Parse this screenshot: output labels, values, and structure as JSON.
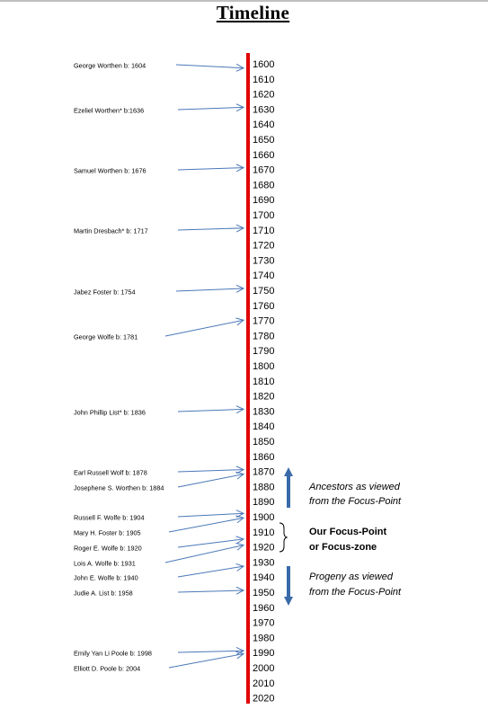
{
  "title": "Timeline",
  "years": [
    1600,
    1610,
    1620,
    1630,
    1640,
    1650,
    1660,
    1670,
    1680,
    1690,
    1700,
    1710,
    1720,
    1730,
    1740,
    1750,
    1760,
    1770,
    1780,
    1790,
    1800,
    1810,
    1820,
    1830,
    1840,
    1850,
    1860,
    1870,
    1880,
    1890,
    1900,
    1910,
    1920,
    1930,
    1940,
    1950,
    1960,
    1970,
    1980,
    1990,
    2000,
    2010,
    2020
  ],
  "people": [
    {
      "label": "George Worthen b: 1604",
      "year": 1604
    },
    {
      "label": "Ezeliel Worthen* b:1636",
      "year": 1630
    },
    {
      "label": "Samuel Worthen b: 1676",
      "year": 1670
    },
    {
      "label": "Martin Dresbach* b: 1717",
      "year": 1710
    },
    {
      "label": "Jabez Foster b: 1754",
      "year": 1750
    },
    {
      "label": "George Wolfe b: 1781",
      "year": 1771
    },
    {
      "label": "John Phillip List* b: 1836",
      "year": 1830
    },
    {
      "label": "Earl Russell Wolf b: 1878",
      "year": 1870
    },
    {
      "label": "Josephene S. Worthen b: 1884",
      "year": 1873
    },
    {
      "label": "Russell F. Wolfe b: 1904",
      "year": 1899
    },
    {
      "label": "Mary H. Foster b: 1905",
      "year": 1902
    },
    {
      "label": "Roger E. Wolfe b: 1920",
      "year": 1916
    },
    {
      "label": "Lois A. Wolfe b: 1931",
      "year": 1920
    },
    {
      "label": "John E. Wolfe b: 1940",
      "year": 1934
    },
    {
      "label": "Judie A. List b: 1958",
      "year": 1950
    },
    {
      "label": "Emily Yan Li Poole b: 1998",
      "year": 1990
    },
    {
      "label": "Elliott D. Poole b: 2004",
      "year": 1992
    }
  ],
  "notes": {
    "ancestors": [
      "Ancestors as viewed",
      "from the Focus-Point"
    ],
    "focus": [
      "Our Focus-Point",
      "or Focus-zone"
    ],
    "progeny": [
      "Progeny as viewed",
      "from the Focus-Point"
    ]
  },
  "colors": {
    "axis": "#e00000",
    "arrow": "#4a78b8",
    "bigArrow": "#3a6aa8"
  }
}
